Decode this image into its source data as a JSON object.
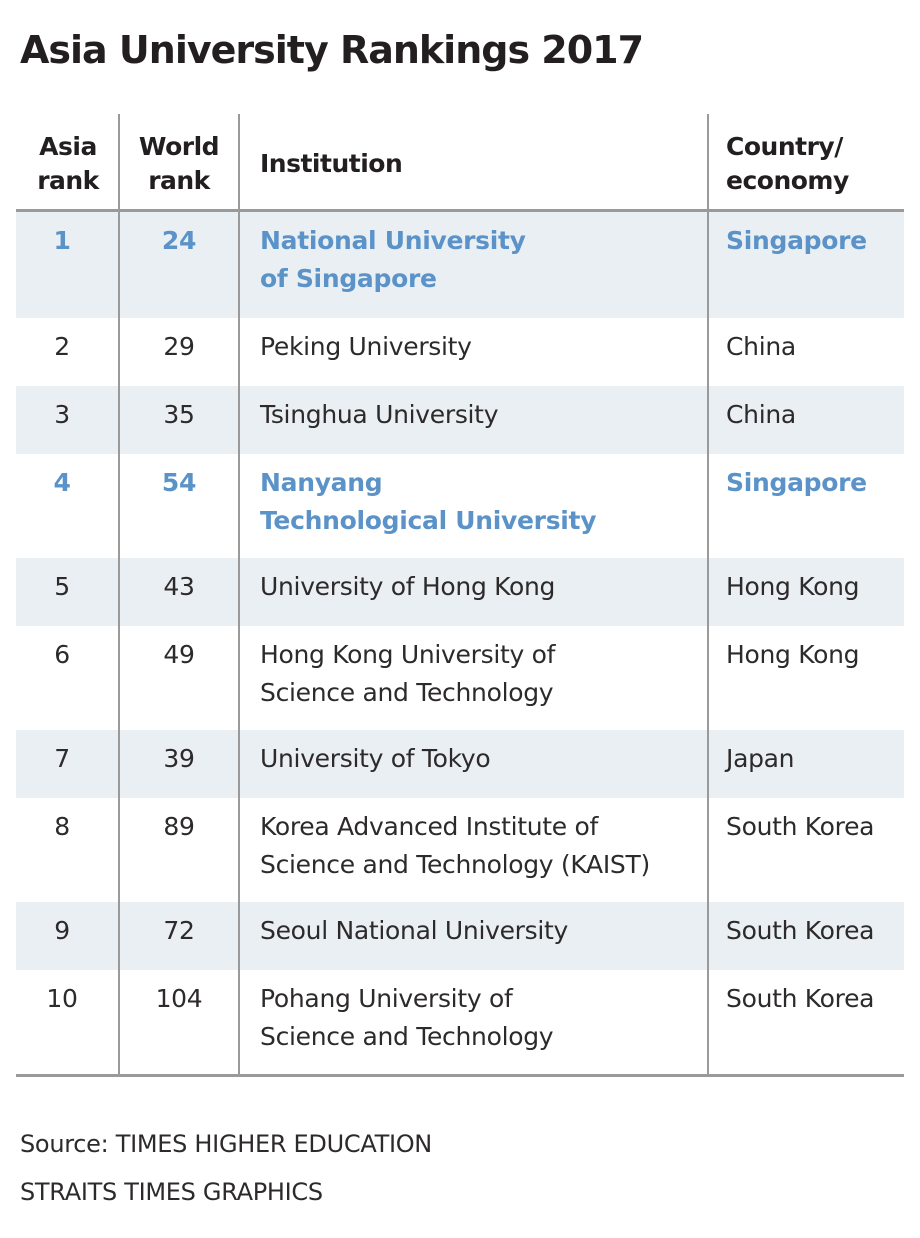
{
  "title": "Asia University Rankings 2017",
  "columns": {
    "asia_rank": [
      "Asia",
      "rank"
    ],
    "world_rank": [
      "World",
      "rank"
    ],
    "institution": "Institution",
    "country": [
      "Country/",
      "economy"
    ]
  },
  "rows": [
    {
      "asia_rank": "1",
      "world_rank": "24",
      "institution": [
        "National University",
        "of Singapore"
      ],
      "country": "Singapore",
      "highlight": true
    },
    {
      "asia_rank": "2",
      "world_rank": "29",
      "institution": [
        "Peking University"
      ],
      "country": "China",
      "highlight": false
    },
    {
      "asia_rank": "3",
      "world_rank": "35",
      "institution": [
        "Tsinghua University"
      ],
      "country": "China",
      "highlight": false
    },
    {
      "asia_rank": "4",
      "world_rank": "54",
      "institution": [
        "Nanyang",
        "Technological University"
      ],
      "country": "Singapore",
      "highlight": true
    },
    {
      "asia_rank": "5",
      "world_rank": "43",
      "institution": [
        "University of Hong Kong"
      ],
      "country": "Hong Kong",
      "highlight": false
    },
    {
      "asia_rank": "6",
      "world_rank": "49",
      "institution": [
        "Hong Kong University of",
        "Science and Technology"
      ],
      "country": "Hong Kong",
      "highlight": false
    },
    {
      "asia_rank": "7",
      "world_rank": "39",
      "institution": [
        "University of Tokyo"
      ],
      "country": "Japan",
      "highlight": false
    },
    {
      "asia_rank": "8",
      "world_rank": "89",
      "institution": [
        "Korea Advanced Institute of",
        "Science and Technology (KAIST)"
      ],
      "country": "South Korea",
      "highlight": false
    },
    {
      "asia_rank": "9",
      "world_rank": "72",
      "institution": [
        "Seoul National University"
      ],
      "country": "South Korea",
      "highlight": false
    },
    {
      "asia_rank": "10",
      "world_rank": "104",
      "institution": [
        "Pohang University of",
        "Science and Technology"
      ],
      "country": "South Korea",
      "highlight": false
    }
  ],
  "footer": {
    "source": "Source: TIMES HIGHER EDUCATION",
    "credit": "STRAITS TIMES GRAPHICS"
  },
  "colors": {
    "highlight": "#5b93c8",
    "shade": "#eaeff3",
    "rule": "#9a9a9a"
  },
  "chart_data": {
    "type": "table",
    "title": "Asia University Rankings 2017",
    "columns": [
      "Asia rank",
      "World rank",
      "Institution",
      "Country/ economy"
    ],
    "rows": [
      [
        1,
        24,
        "National University of Singapore",
        "Singapore"
      ],
      [
        2,
        29,
        "Peking University",
        "China"
      ],
      [
        3,
        35,
        "Tsinghua University",
        "China"
      ],
      [
        4,
        54,
        "Nanyang Technological University",
        "Singapore"
      ],
      [
        5,
        43,
        "University of Hong Kong",
        "Hong Kong"
      ],
      [
        6,
        49,
        "Hong Kong University of Science and Technology",
        "Hong Kong"
      ],
      [
        7,
        39,
        "University of Tokyo",
        "Japan"
      ],
      [
        8,
        89,
        "Korea Advanced Institute of Science and Technology (KAIST)",
        "South Korea"
      ],
      [
        9,
        72,
        "Seoul National University",
        "South Korea"
      ],
      [
        10,
        104,
        "Pohang University of Science and Technology",
        "South Korea"
      ]
    ],
    "highlighted_rows": [
      1,
      4
    ]
  }
}
